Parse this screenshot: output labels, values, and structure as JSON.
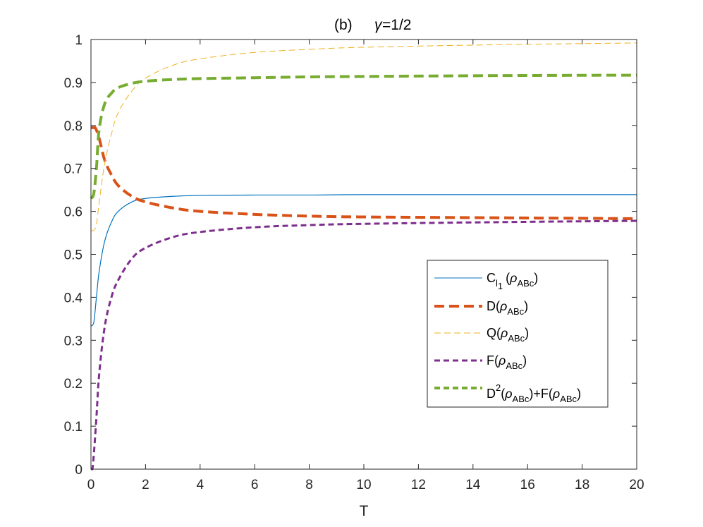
{
  "chart_data": {
    "type": "line",
    "title": "(b)",
    "subtitle_symbol": "γ",
    "subtitle_value": "=1/2",
    "xlabel": "T",
    "ylabel": "",
    "xlim": [
      0,
      20
    ],
    "ylim": [
      0,
      1
    ],
    "xticks": [
      0,
      2,
      4,
      6,
      8,
      10,
      12,
      14,
      16,
      18,
      20
    ],
    "yticks": [
      0,
      0.1,
      0.2,
      0.3,
      0.4,
      0.5,
      0.6,
      0.7,
      0.8,
      0.9,
      1
    ],
    "ytick_labels": [
      "0",
      "0.1",
      "0.2",
      "0.3",
      "0.4",
      "0.5",
      "0.6",
      "0.7",
      "0.8",
      "0.9",
      "1"
    ],
    "grid": false,
    "legend_position": "right-center",
    "series": [
      {
        "name": "C_l1(ρ_ABc)",
        "legend": {
          "main": "C",
          "sub1": "l",
          "subsub": "1",
          "open": "(",
          "rho": "ρ",
          "sub2": "ABc",
          "close": ")"
        },
        "color": "#0072BD",
        "style": "solid",
        "x": [
          0,
          0.1,
          0.2,
          0.3,
          0.5,
          0.75,
          1,
          1.5,
          2,
          3,
          4,
          6,
          8,
          10,
          15,
          20
        ],
        "y": [
          0.333,
          0.34,
          0.4,
          0.46,
          0.53,
          0.575,
          0.6,
          0.622,
          0.63,
          0.635,
          0.637,
          0.638,
          0.638,
          0.639,
          0.639,
          0.639
        ]
      },
      {
        "name": "D(ρ_ABc)",
        "legend": {
          "main": "D",
          "open": "(",
          "rho": "ρ",
          "sub2": "ABc",
          "close": ")"
        },
        "color": "#D95319",
        "style": "dashed-thick",
        "x": [
          0,
          0.15,
          0.3,
          0.5,
          0.75,
          1,
          1.5,
          2,
          3,
          4,
          6,
          8,
          10,
          15,
          20
        ],
        "y": [
          0.795,
          0.795,
          0.77,
          0.72,
          0.685,
          0.66,
          0.635,
          0.622,
          0.608,
          0.6,
          0.593,
          0.589,
          0.587,
          0.585,
          0.583
        ]
      },
      {
        "name": "Q(ρ_ABc)",
        "legend": {
          "main": "Q",
          "open": "(",
          "rho": "ρ",
          "sub2": "ABc",
          "close": ")"
        },
        "color": "#EDB120",
        "style": "dashed-thin",
        "x": [
          0,
          0.1,
          0.2,
          0.3,
          0.5,
          0.75,
          1,
          1.5,
          2,
          3,
          4,
          6,
          8,
          10,
          15,
          20
        ],
        "y": [
          0.555,
          0.555,
          0.57,
          0.62,
          0.71,
          0.78,
          0.83,
          0.88,
          0.91,
          0.94,
          0.955,
          0.97,
          0.977,
          0.982,
          0.988,
          0.992
        ]
      },
      {
        "name": "F(ρ_ABc)",
        "legend": {
          "main": "F",
          "open": "(",
          "rho": "ρ",
          "sub2": "ABc",
          "close": ")"
        },
        "color": "#7E2F8E",
        "style": "dashed",
        "x": [
          0,
          0.05,
          0.1,
          0.2,
          0.3,
          0.5,
          0.75,
          1,
          1.5,
          2,
          3,
          4,
          6,
          8,
          10,
          15,
          20
        ],
        "y": [
          0,
          0.0,
          0.03,
          0.12,
          0.22,
          0.33,
          0.4,
          0.44,
          0.49,
          0.515,
          0.54,
          0.552,
          0.563,
          0.568,
          0.571,
          0.575,
          0.578
        ]
      },
      {
        "name": "D^2(ρ_ABc)+F(ρ_ABc)",
        "legend": {
          "main": "D",
          "sup": "2",
          "open": "(",
          "rho": "ρ",
          "sub2": "ABc",
          "close": ")",
          "plus": "+F",
          "open2": "(",
          "rho2": "ρ",
          "sub3": "ABc",
          "close2": ")"
        },
        "color": "#77AC30",
        "style": "dashed-thick",
        "x": [
          0,
          0.1,
          0.2,
          0.3,
          0.5,
          0.75,
          1,
          1.5,
          2,
          3,
          4,
          6,
          8,
          10,
          15,
          20
        ],
        "y": [
          0.63,
          0.64,
          0.7,
          0.79,
          0.85,
          0.875,
          0.888,
          0.898,
          0.903,
          0.907,
          0.909,
          0.911,
          0.913,
          0.914,
          0.916,
          0.917
        ]
      }
    ]
  }
}
